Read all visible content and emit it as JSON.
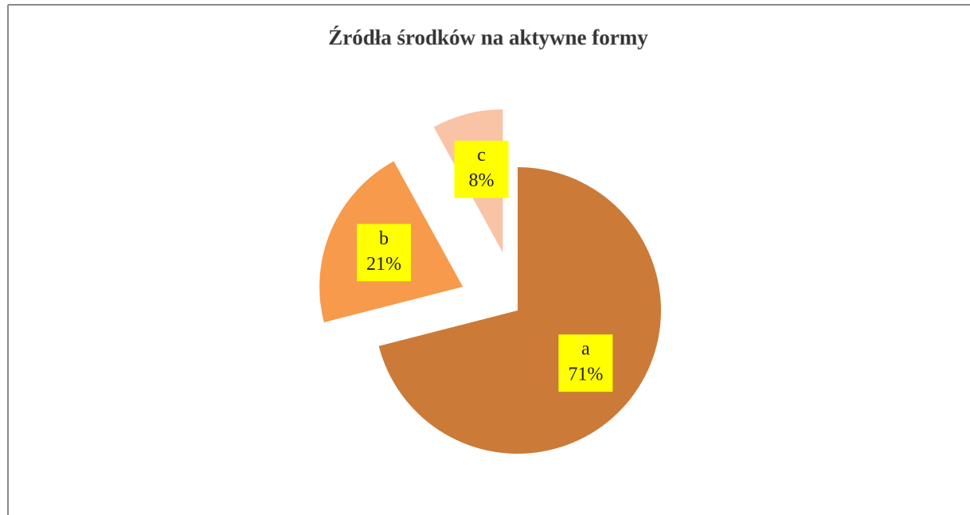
{
  "chart_data": {
    "type": "pie",
    "title": "Źródła środków na aktywne formy",
    "categories": [
      "a",
      "b",
      "c"
    ],
    "values": [
      71,
      21,
      8
    ],
    "value_labels": [
      "71%",
      "21%",
      "8%"
    ],
    "colors": [
      "#cc7a38",
      "#f79a4b",
      "#f9c4a6"
    ]
  }
}
